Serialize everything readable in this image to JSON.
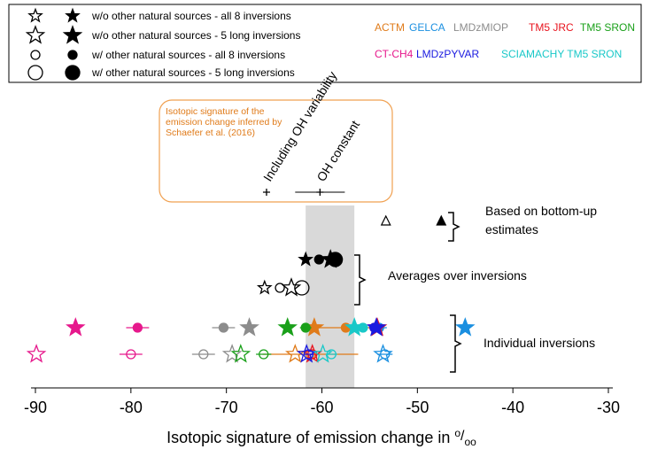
{
  "legend": {
    "entries": [
      "w/o other natural sources - all 8 inversions",
      "w/o other natural sources -  5 long inversions",
      "w/ other natural sources - all 8 inversions",
      "w/ other natural sources -  5 long inversions"
    ]
  },
  "chart_data": {
    "type": "scatter",
    "x_label": "Isotopic signature of emission change in",
    "x_unit": [
      "o",
      "/",
      "oo"
    ],
    "xlim": [
      -90,
      -30
    ],
    "xticks": [
      -90,
      -80,
      -70,
      -60,
      -50,
      -40,
      -30
    ],
    "shaded_range": [
      -61.7,
      -56.6
    ],
    "series": [
      {
        "name": "ACTM",
        "color": "#e07b1a",
        "filled_star": -60.8,
        "filled_circle": -57.5,
        "filled_circle_err": 3.3,
        "open_star": -62.8,
        "open_circle": -61.2,
        "open_circle_err": 5
      },
      {
        "name": "GELCA",
        "color": "#1a8fe0",
        "filled_star": -45.0,
        "filled_circle": -54.0,
        "filled_circle_err": 0.8,
        "open_star": -53.6,
        "open_circle": -53.4,
        "open_circle_err": 0.8
      },
      {
        "name": "LMDzMIOP",
        "color": "#8c8c8c",
        "filled_star": -67.6,
        "filled_circle": -70.3,
        "filled_circle_err": 1.2,
        "open_star": -69.4,
        "open_circle": -72.4,
        "open_circle_err": 1.2
      },
      {
        "name": "TM5 JRC",
        "color": "#e8141e",
        "filled_star": -54.2,
        "filled_circle": -54.5,
        "filled_circle_err": 0.6,
        "open_star": -61.0,
        "open_circle": -61.0,
        "open_circle_err": 0.6
      },
      {
        "name": "TM5 SRON",
        "color": "#1aa01a",
        "filled_star": -63.6,
        "filled_circle": -61.7,
        "filled_circle_err": 0.6,
        "open_star": -68.5,
        "open_circle": -66.1,
        "open_circle_err": 0.8
      },
      {
        "name": "CT-CH4",
        "color": "#e6198c",
        "filled_star": -85.8,
        "filled_circle": -79.3,
        "filled_circle_err": 1.2,
        "open_star": -89.9,
        "open_circle": -80.0,
        "open_circle_err": 1.2
      },
      {
        "name": "LMDzPYVAR",
        "color": "#1a1ae0",
        "filled_star": -54.3,
        "filled_circle": -54.5,
        "filled_circle_err": 0.5,
        "open_star": -61.6,
        "open_circle": -61.4,
        "open_circle_err": 0.5
      },
      {
        "name": "SCIAMACHY TM5 SRON",
        "color": "#19c8c8",
        "filled_star": -56.6,
        "filled_circle": -55.7,
        "filled_circle_err": 0.5,
        "open_star": -59.9,
        "open_circle": -59.0,
        "open_circle_err": 0.6
      }
    ],
    "averages": [
      {
        "x": -61.7,
        "shape": "star",
        "size": "small",
        "filled": true
      },
      {
        "x": -60.3,
        "shape": "circle",
        "size": "small",
        "filled": true
      },
      {
        "x": -59.1,
        "shape": "star",
        "size": "big",
        "filled": true
      },
      {
        "x": -58.6,
        "shape": "circle",
        "size": "big",
        "filled": true
      },
      {
        "x": -66.0,
        "shape": "star",
        "size": "small",
        "filled": false
      },
      {
        "x": -64.4,
        "shape": "circle",
        "size": "small",
        "filled": false
      },
      {
        "x": -63.2,
        "shape": "star",
        "size": "big",
        "filled": false
      },
      {
        "x": -62.1,
        "shape": "circle",
        "size": "big",
        "filled": false
      }
    ],
    "averages_label": "Averages over inversions",
    "individual_label": "Individual inversions",
    "bottom_up": {
      "values": [
        -53.3,
        -47.5
      ],
      "label": [
        "Based on bottom-up",
        "estimates"
      ]
    },
    "schaefer": {
      "text": [
        "Isotopic signature of the",
        "emission change inferred by",
        "Schaefer et al. (2016)"
      ],
      "labels": [
        "Including OH variability",
        "OH constant"
      ],
      "values": [
        -65.8,
        -60.2
      ],
      "oh_constant_err": 2.6
    }
  }
}
